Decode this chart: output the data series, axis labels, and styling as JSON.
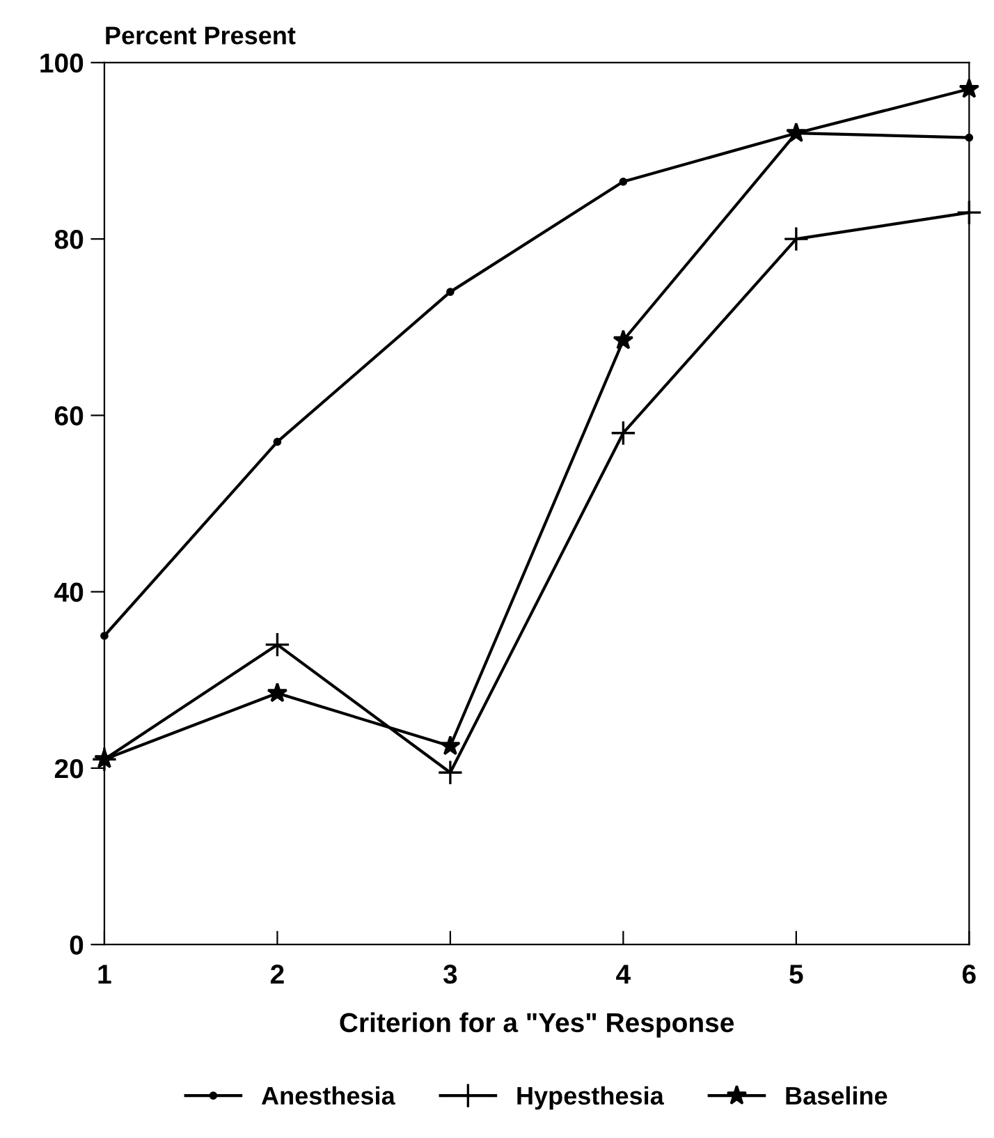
{
  "chart_data": {
    "type": "line",
    "ylabel": "Percent Present",
    "xlabel": "Criterion for a \"Yes\" Response",
    "x": [
      1,
      2,
      3,
      4,
      5,
      6
    ],
    "xlim": [
      1,
      6
    ],
    "xticks": [
      1,
      2,
      3,
      4,
      5,
      6
    ],
    "ylim": [
      0,
      100
    ],
    "yticks": [
      0,
      20,
      40,
      60,
      80,
      100
    ],
    "grid": false,
    "legend": "bottom",
    "line_style": "solid",
    "series": [
      {
        "name": "Anesthesia",
        "color": "#000000",
        "marker": "circle",
        "values": [
          35,
          57,
          74,
          86.5,
          92,
          91.5
        ]
      },
      {
        "name": "Hypesthesia",
        "color": "#000000",
        "marker": "cross",
        "values": [
          21,
          34,
          19.5,
          58,
          80,
          83
        ]
      },
      {
        "name": "Baseline",
        "color": "#000000",
        "marker": "star",
        "values": [
          21,
          28.5,
          22.5,
          68.5,
          92,
          97
        ]
      }
    ]
  }
}
